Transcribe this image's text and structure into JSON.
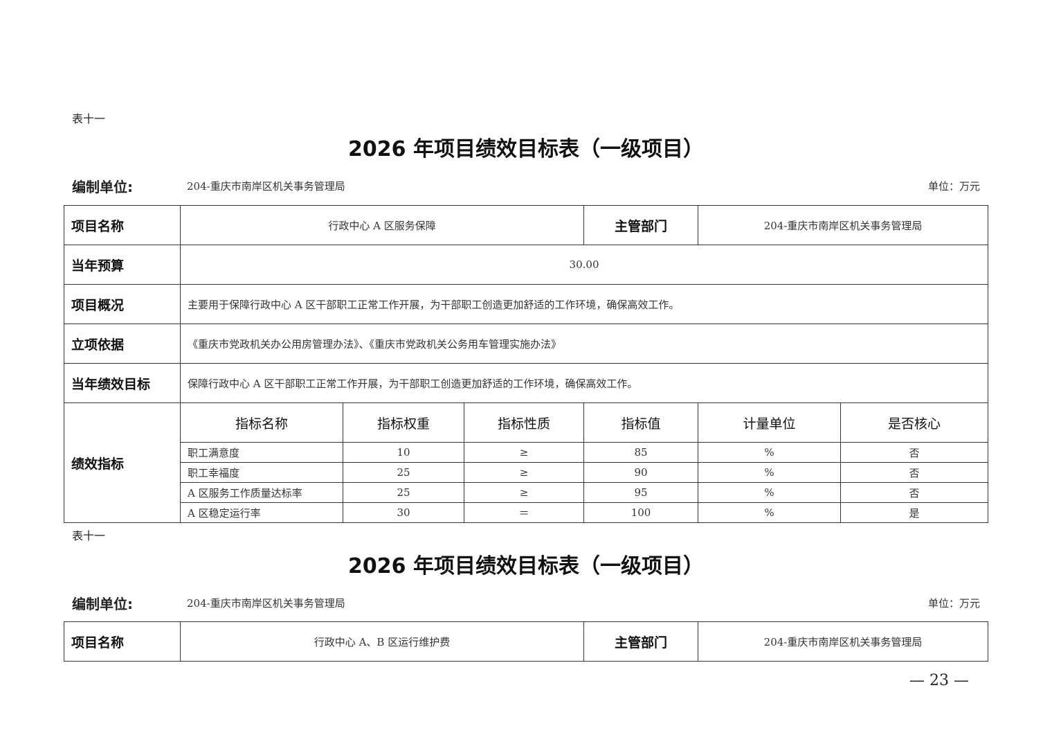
{
  "pages": [
    {
      "table_tag": "表十一",
      "title": "2026 年项目绩效目标表（一级项目）",
      "unit_label": "编制单位:",
      "unit_value": "204-重庆市南岸区机关事务管理局",
      "money_unit": "单位：万元",
      "project_name_label": "项目名称",
      "project_name": "行政中心 A 区服务保障",
      "dept_label": "主管部门",
      "dept": "204-重庆市南岸区机关事务管理局",
      "budget_label": "当年预算",
      "budget": "30.00",
      "overview_label": "项目概况",
      "overview": "主要用于保障行政中心 A 区干部职工正常工作开展，为干部职工创造更加舒适的工作环境，确保高效工作。",
      "basis_label": "立项依据",
      "basis": "《重庆市党政机关办公用房管理办法》、《重庆市党政机关公务用车管理实施办法》",
      "goal_label": "当年绩效目标",
      "goal": "保障行政中心 A 区干部职工正常工作开展，为干部职工创造更加舒适的工作环境，确保高效工作。",
      "indicators_label": "绩效指标",
      "indicator_headers": [
        "指标名称",
        "指标权重",
        "指标性质",
        "指标值",
        "计量单位",
        "是否核心"
      ],
      "indicators": [
        [
          "职工满意度",
          "10",
          "≥",
          "85",
          "%",
          "否"
        ],
        [
          "职工幸福度",
          "25",
          "≥",
          "90",
          "%",
          "否"
        ],
        [
          "A 区服务工作质量达标率",
          "25",
          "≥",
          "95",
          "%",
          "否"
        ],
        [
          "A 区稳定运行率",
          "30",
          "＝",
          "100",
          "%",
          "是"
        ]
      ]
    },
    {
      "table_tag": "表十一",
      "title": "2026 年项目绩效目标表（一级项目）",
      "unit_label": "编制单位:",
      "unit_value": "204-重庆市南岸区机关事务管理局",
      "money_unit": "单位：万元",
      "project_name_label": "项目名称",
      "project_name": "行政中心 A、B 区运行维护费",
      "dept_label": "主管部门",
      "dept": "204-重庆市南岸区机关事务管理局"
    }
  ],
  "page_number": "— 23 —"
}
